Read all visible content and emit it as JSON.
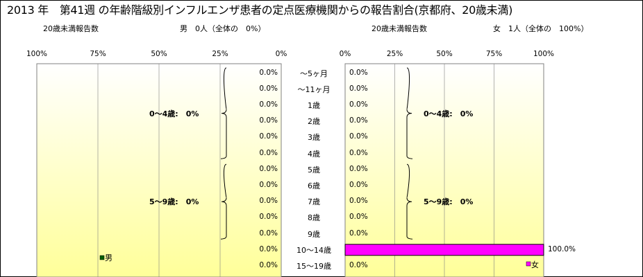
{
  "title": "2013 年　第41週 の年齢階級別インフルエンザ患者の定点医療機関からの報告割合(京都府、20歳未満)",
  "male_summary": {
    "label": "20歳未満報告数",
    "count": "男　0人（全体の　0%）"
  },
  "female_summary": {
    "label": "20歳未満報告数",
    "count": "女　1人（全体の　100%）"
  },
  "colors": {
    "male": "#006000",
    "female": "#ff00ff",
    "plot_top": "#ffffff",
    "plot_bottom": "#ffff99",
    "grid": "#808080"
  },
  "chart_data": [
    {
      "type": "bar",
      "orientation": "horizontal",
      "direction": "right-to-left",
      "legend": "男",
      "legend_position": "bottom-left",
      "categories": [
        "～5ヶ月",
        "～11ヶ月",
        "1歳",
        "2歳",
        "3歳",
        "4歳",
        "5歳",
        "6歳",
        "7歳",
        "8歳",
        "9歳",
        "10～14歳",
        "15～19歳"
      ],
      "values": [
        0,
        0,
        0,
        0,
        0,
        0,
        0,
        0,
        0,
        0,
        0,
        0,
        0
      ],
      "value_labels": [
        "0.0%",
        "0.0%",
        "0.0%",
        "0.0%",
        "0.0%",
        "0.0%",
        "0.0%",
        "0.0%",
        "0.0%",
        "0.0%",
        "0.0%",
        "0.0%",
        "0.0%"
      ],
      "xlim": [
        0,
        100
      ],
      "xticks": [
        "100%",
        "75%",
        "50%",
        "25%",
        "0%"
      ],
      "grid": true,
      "groups": [
        {
          "label": "0～4歳:　0%",
          "from": 0,
          "to": 5
        },
        {
          "label": "5～9歳:　0%",
          "from": 6,
          "to": 10
        }
      ]
    },
    {
      "type": "bar",
      "orientation": "horizontal",
      "direction": "left-to-right",
      "legend": "女",
      "legend_position": "bottom-right",
      "categories": [
        "～5ヶ月",
        "～11ヶ月",
        "1歳",
        "2歳",
        "3歳",
        "4歳",
        "5歳",
        "6歳",
        "7歳",
        "8歳",
        "9歳",
        "10～14歳",
        "15～19歳"
      ],
      "values": [
        0,
        0,
        0,
        0,
        0,
        0,
        0,
        0,
        0,
        0,
        0,
        100,
        0
      ],
      "value_labels": [
        "0.0%",
        "0.0%",
        "0.0%",
        "0.0%",
        "0.0%",
        "0.0%",
        "0.0%",
        "0.0%",
        "0.0%",
        "0.0%",
        "0.0%",
        "100.0%",
        "0.0%"
      ],
      "xlim": [
        0,
        100
      ],
      "xticks": [
        "0%",
        "25%",
        "50%",
        "75%",
        "100%"
      ],
      "grid": true,
      "groups": [
        {
          "label": "0～4歳:　0%",
          "from": 0,
          "to": 5
        },
        {
          "label": "5～9歳:　0%",
          "from": 6,
          "to": 10
        }
      ]
    }
  ]
}
